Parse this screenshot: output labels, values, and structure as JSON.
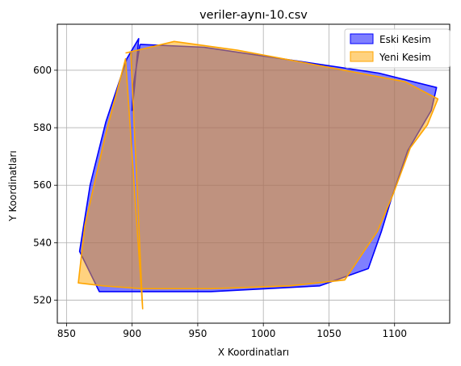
{
  "chart_data": {
    "type": "area",
    "title": "veriler-aynı-10.csv",
    "xlabel": "X Koordinatları",
    "ylabel": "Y Koordinatları",
    "xlim": [
      843,
      1142
    ],
    "ylim": [
      512,
      616
    ],
    "xticks": [
      850,
      900,
      950,
      1000,
      1050,
      1100
    ],
    "yticks": [
      520,
      540,
      560,
      580,
      600
    ],
    "grid": true,
    "legend_position": "top-right",
    "series": [
      {
        "name": "Eski Kesim",
        "edge_color": "#0000ff",
        "fill_color": "#0000ff",
        "fill_opacity": 0.5,
        "points": [
          [
            906,
            609
          ],
          [
            955,
            608
          ],
          [
            1088,
            599
          ],
          [
            1132,
            594
          ],
          [
            1128,
            586
          ],
          [
            1110,
            572
          ],
          [
            1098,
            556
          ],
          [
            1090,
            544
          ],
          [
            1080,
            531
          ],
          [
            1043,
            525
          ],
          [
            960,
            523
          ],
          [
            875,
            523
          ],
          [
            860,
            537
          ],
          [
            868,
            560
          ],
          [
            880,
            582
          ],
          [
            896,
            604
          ],
          [
            905,
            611
          ],
          [
            902,
            595
          ],
          [
            900,
            586
          ],
          [
            901,
            595
          ],
          [
            906,
            609
          ]
        ]
      },
      {
        "name": "Yeni Kesim",
        "edge_color": "#ffa500",
        "fill_color": "#ffa500",
        "fill_opacity": 0.5,
        "points": [
          [
            895,
            606
          ],
          [
            932,
            610
          ],
          [
            980,
            607
          ],
          [
            1050,
            601
          ],
          [
            1108,
            596
          ],
          [
            1133,
            590
          ],
          [
            1125,
            581
          ],
          [
            1112,
            573
          ],
          [
            1099,
            557
          ],
          [
            1087,
            544
          ],
          [
            1062,
            527
          ],
          [
            1020,
            525
          ],
          [
            960,
            524
          ],
          [
            907,
            524
          ],
          [
            878,
            525
          ],
          [
            859,
            526
          ],
          [
            864,
            546
          ],
          [
            872,
            562
          ],
          [
            880,
            578
          ],
          [
            895,
            604
          ],
          [
            908,
            517
          ],
          [
            899,
            606
          ]
        ]
      }
    ]
  }
}
